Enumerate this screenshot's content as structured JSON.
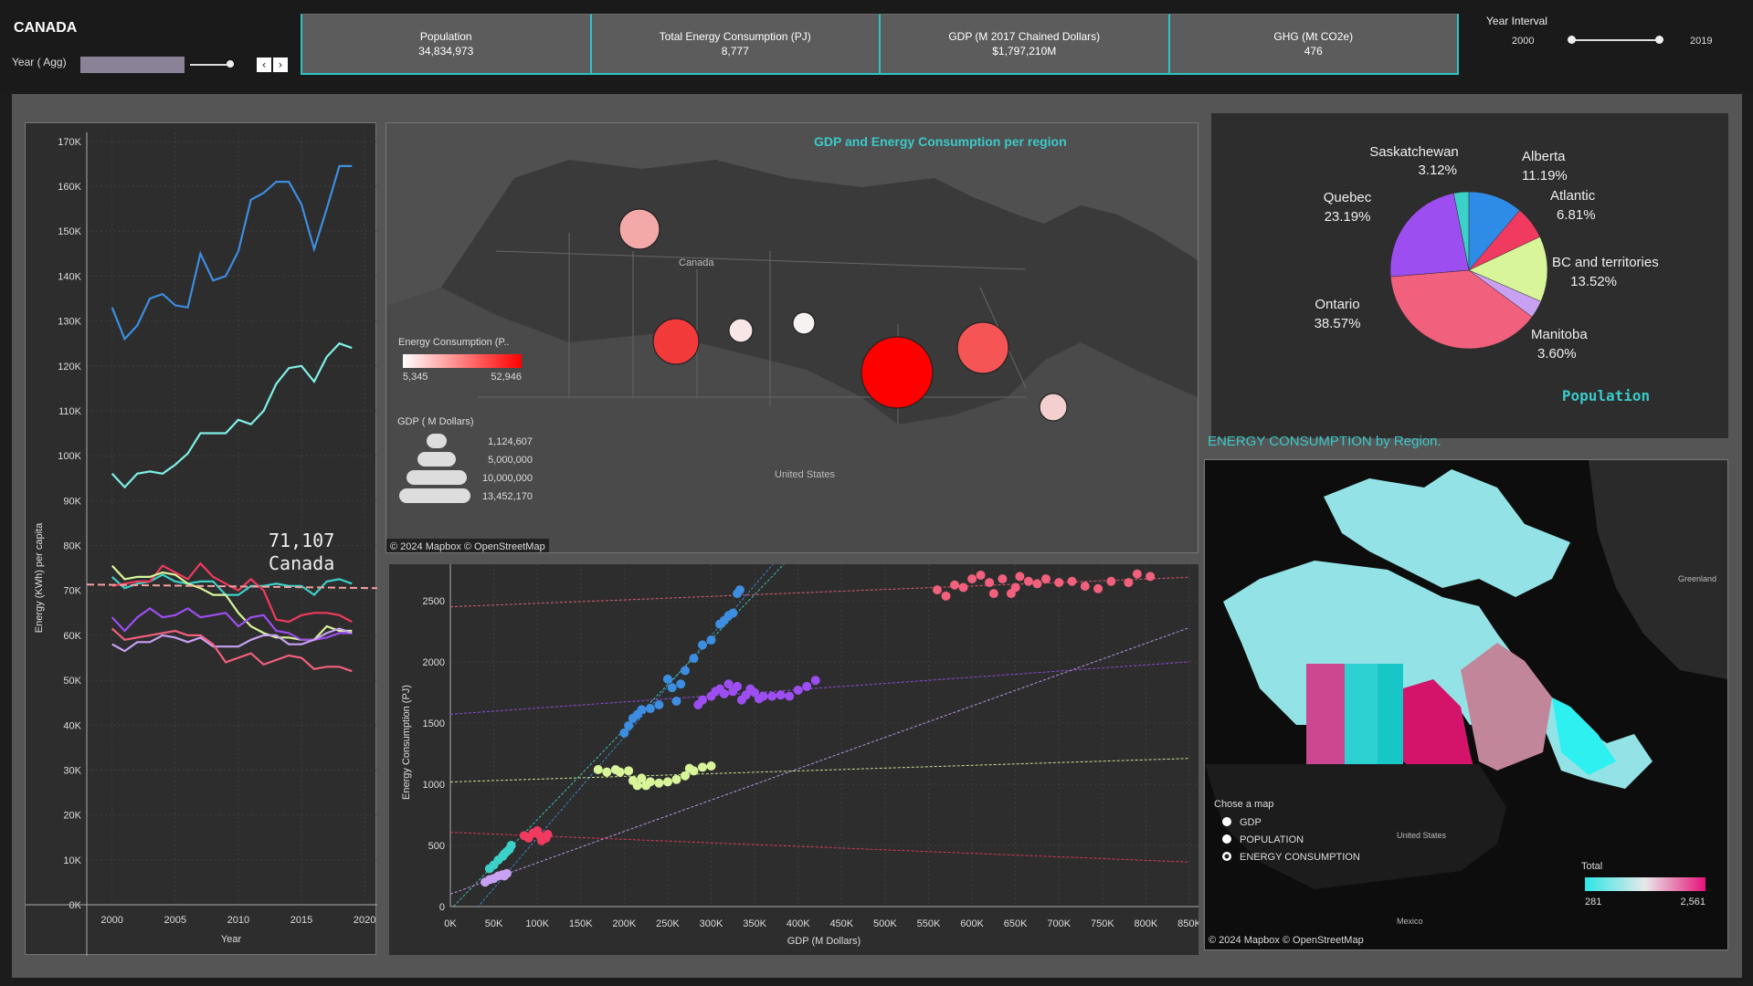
{
  "header": {
    "country": "CANADA",
    "year_label": "Year ( Agg)",
    "prev_icon": "chevron-left-icon",
    "next_icon": "chevron-right-icon",
    "kpis": [
      {
        "label": "Population",
        "value": "34,834,973"
      },
      {
        "label": "Total Energy Consumption (PJ)",
        "value": "8,777"
      },
      {
        "label": "GDP (M 2017 Chained Dollars)",
        "value": "$1,797,210M"
      },
      {
        "label": "GHG (Mt CO2e)",
        "value": "476"
      }
    ],
    "interval_label": "Year Interval",
    "interval_start": "2000",
    "interval_end": "2019"
  },
  "line_chart": {
    "ylabel": "Energy (KWh) per capita",
    "xlabel": "Year",
    "annotation_value": "71,107",
    "annotation_label": "Canada",
    "yticks": [
      "170K",
      "160K",
      "150K",
      "140K",
      "130K",
      "120K",
      "110K",
      "100K",
      "90K",
      "80K",
      "70K",
      "60K",
      "50K",
      "40K",
      "30K",
      "20K",
      "10K",
      "0K"
    ],
    "xticks": [
      "2000",
      "2005",
      "2010",
      "2015",
      "2020"
    ]
  },
  "bubble_map": {
    "title": "GDP and Energy Consumption per region",
    "place_canada": "Canada",
    "place_us": "United States",
    "legend_energy_title": "Energy Consumption (P..",
    "legend_energy_min": "5,345",
    "legend_energy_max": "52,946",
    "legend_gdp_title": "GDP ( M Dollars)",
    "legend_gdp_values": [
      "1,124,607",
      "5,000,000",
      "10,000,000",
      "13,452,170"
    ],
    "attribution": "© 2024 Mapbox © OpenStreetMap"
  },
  "scatter": {
    "ylabel": "Energy Consumption (PJ)",
    "xlabel": "GDP (M Dollars)",
    "xticks": [
      "0K",
      "50K",
      "100K",
      "150K",
      "200K",
      "250K",
      "300K",
      "350K",
      "400K",
      "450K",
      "500K",
      "550K",
      "600K",
      "650K",
      "700K",
      "750K",
      "800K",
      "850K"
    ],
    "yticks": [
      "0",
      "500",
      "1000",
      "1500",
      "2000",
      "2500"
    ]
  },
  "pie": {
    "title": "Population",
    "slices": [
      {
        "name": "Alberta",
        "pct": "11.19%",
        "value": 11.19,
        "color": "#2e8ce6"
      },
      {
        "name": "Atlantic",
        "pct": "6.81%",
        "value": 6.81,
        "color": "#f03a5f"
      },
      {
        "name": "BC and territories",
        "pct": "13.52%",
        "value": 13.52,
        "color": "#d8f59a"
      },
      {
        "name": "Manitoba",
        "pct": "3.60%",
        "value": 3.6,
        "color": "#c9a1f3"
      },
      {
        "name": "Ontario",
        "pct": "38.57%",
        "value": 38.57,
        "color": "#f1607d"
      },
      {
        "name": "Quebec",
        "pct": "23.19%",
        "value": 23.19,
        "color": "#9c4ef0"
      },
      {
        "name": "Saskatchewan",
        "pct": "3.12%",
        "value": 3.12,
        "color": "#3cd1c8"
      }
    ]
  },
  "choropleth": {
    "title": "ENERGY CONSUMPTION  by Region.",
    "greenland": "Greenland",
    "united_states": "United States",
    "mexico": "Mexico",
    "chooser_title": "Chose a map",
    "options": [
      {
        "label": "GDP",
        "selected": false
      },
      {
        "label": "POPULATION",
        "selected": false
      },
      {
        "label": "ENERGY CONSUMPTION",
        "selected": true
      }
    ],
    "legend_title": "Total",
    "legend_min": "281",
    "legend_max": "2,561",
    "attribution": "© 2024 Mapbox © OpenStreetMap"
  },
  "chart_data": [
    {
      "type": "line",
      "ylabel": "Energy (KWh) per capita",
      "xlabel": "Year",
      "x": [
        2000,
        2001,
        2002,
        2003,
        2004,
        2005,
        2006,
        2007,
        2008,
        2009,
        2010,
        2011,
        2012,
        2013,
        2014,
        2015,
        2016,
        2017,
        2018,
        2019
      ],
      "ylim": [
        0,
        172000
      ],
      "xlim": [
        1998,
        2021
      ],
      "reference_value": 71107,
      "series": [
        {
          "color": "#3d8ee0",
          "values": [
            133000,
            126000,
            129000,
            135000,
            136000,
            133500,
            133000,
            145000,
            139000,
            140000,
            145500,
            157000,
            158500,
            161000,
            161000,
            156000,
            146000,
            155000,
            164500,
            164500
          ]
        },
        {
          "color": "#7ff0e6",
          "values": [
            96000,
            93000,
            96000,
            96500,
            96000,
            98000,
            100500,
            105000,
            105000,
            105000,
            108000,
            107000,
            110000,
            116000,
            119500,
            120000,
            116500,
            122000,
            125000,
            124000
          ]
        },
        {
          "color": "#3cd1c8",
          "values": [
            73000,
            70500,
            71500,
            72000,
            73500,
            72000,
            71500,
            72000,
            72000,
            69000,
            69000,
            71000,
            71000,
            71500,
            71000,
            71000,
            69000,
            72000,
            72500,
            71500
          ]
        },
        {
          "color": "#f03a5f",
          "values": [
            71000,
            71500,
            72000,
            72000,
            75500,
            74000,
            72500,
            76000,
            73000,
            71500,
            70000,
            72500,
            70000,
            63500,
            63000,
            64500,
            65000,
            65000,
            64500,
            63000
          ]
        },
        {
          "color": "#d8f59a",
          "values": [
            75500,
            72500,
            73000,
            73000,
            74000,
            73500,
            71500,
            70500,
            69000,
            69000,
            65000,
            62000,
            60500,
            59500,
            59500,
            59000,
            59000,
            62000,
            61000,
            61000
          ]
        },
        {
          "color": "#9c4ef0",
          "values": [
            64000,
            61000,
            64000,
            66000,
            64000,
            64500,
            66000,
            64000,
            64500,
            65000,
            62000,
            64000,
            64500,
            61000,
            60500,
            59000,
            59000,
            59500,
            60500,
            60500
          ]
        },
        {
          "color": "#c9a1f3",
          "values": [
            58000,
            56500,
            58500,
            58500,
            60000,
            59500,
            58500,
            59500,
            57500,
            57500,
            57500,
            59000,
            60000,
            60000,
            58000,
            58000,
            59000,
            60500,
            61500,
            60500
          ]
        },
        {
          "color": "#f1607d",
          "values": [
            61500,
            59000,
            59500,
            60000,
            60500,
            61000,
            60000,
            60000,
            58000,
            54000,
            55000,
            56000,
            53500,
            54500,
            55500,
            55000,
            52500,
            53000,
            53000,
            52000
          ]
        }
      ]
    },
    {
      "type": "scatter",
      "xlabel": "GDP (M Dollars)",
      "ylabel": "Energy Consumption (PJ)",
      "xlim": [
        0,
        850000
      ],
      "ylim": [
        0,
        2800
      ],
      "series": [
        {
          "color": "#f1607d",
          "points": [
            [
              560000,
              2590
            ],
            [
              570000,
              2540
            ],
            [
              580000,
              2630
            ],
            [
              590000,
              2610
            ],
            [
              600000,
              2680
            ],
            [
              610000,
              2710
            ],
            [
              620000,
              2650
            ],
            [
              625000,
              2560
            ],
            [
              635000,
              2680
            ],
            [
              645000,
              2560
            ],
            [
              650000,
              2610
            ],
            [
              655000,
              2700
            ],
            [
              665000,
              2660
            ],
            [
              675000,
              2640
            ],
            [
              685000,
              2680
            ],
            [
              700000,
              2650
            ],
            [
              715000,
              2660
            ],
            [
              730000,
              2620
            ],
            [
              745000,
              2600
            ],
            [
              760000,
              2660
            ],
            [
              780000,
              2650
            ],
            [
              790000,
              2720
            ],
            [
              805000,
              2700
            ]
          ]
        },
        {
          "color": "#3d8ee0",
          "points": [
            [
              200000,
              1420
            ],
            [
              205000,
              1480
            ],
            [
              210000,
              1540
            ],
            [
              215000,
              1570
            ],
            [
              220000,
              1610
            ],
            [
              230000,
              1620
            ],
            [
              240000,
              1650
            ],
            [
              250000,
              1860
            ],
            [
              255000,
              1790
            ],
            [
              260000,
              1680
            ],
            [
              265000,
              1820
            ],
            [
              270000,
              1930
            ],
            [
              280000,
              2030
            ],
            [
              290000,
              2140
            ],
            [
              300000,
              2180
            ],
            [
              310000,
              2310
            ],
            [
              315000,
              2340
            ],
            [
              320000,
              2380
            ],
            [
              325000,
              2400
            ],
            [
              330000,
              2560
            ],
            [
              333000,
              2590
            ]
          ]
        },
        {
          "color": "#9c4ef0",
          "points": [
            [
              285000,
              1650
            ],
            [
              290000,
              1690
            ],
            [
              300000,
              1720
            ],
            [
              305000,
              1760
            ],
            [
              310000,
              1780
            ],
            [
              315000,
              1740
            ],
            [
              320000,
              1820
            ],
            [
              325000,
              1760
            ],
            [
              330000,
              1800
            ],
            [
              335000,
              1690
            ],
            [
              340000,
              1730
            ],
            [
              345000,
              1780
            ],
            [
              350000,
              1750
            ],
            [
              355000,
              1700
            ],
            [
              360000,
              1720
            ],
            [
              370000,
              1720
            ],
            [
              380000,
              1730
            ],
            [
              390000,
              1720
            ],
            [
              400000,
              1770
            ],
            [
              410000,
              1800
            ],
            [
              420000,
              1850
            ]
          ]
        },
        {
          "color": "#d8f59a",
          "points": [
            [
              170000,
              1120
            ],
            [
              180000,
              1100
            ],
            [
              190000,
              1120
            ],
            [
              195000,
              1100
            ],
            [
              205000,
              1110
            ],
            [
              210000,
              1030
            ],
            [
              215000,
              990
            ],
            [
              220000,
              1050
            ],
            [
              225000,
              990
            ],
            [
              230000,
              1020
            ],
            [
              240000,
              1010
            ],
            [
              250000,
              1020
            ],
            [
              260000,
              1040
            ],
            [
              270000,
              1070
            ],
            [
              275000,
              1130
            ],
            [
              280000,
              1110
            ],
            [
              290000,
              1140
            ],
            [
              300000,
              1150
            ]
          ]
        },
        {
          "color": "#3cd1c8",
          "points": [
            [
              45000,
              310
            ],
            [
              50000,
              340
            ],
            [
              55000,
              380
            ],
            [
              60000,
              410
            ],
            [
              62000,
              430
            ],
            [
              65000,
              450
            ],
            [
              68000,
              470
            ],
            [
              70000,
              500
            ]
          ]
        },
        {
          "color": "#c9a1f3",
          "points": [
            [
              40000,
              200
            ],
            [
              45000,
              220
            ],
            [
              50000,
              230
            ],
            [
              55000,
              250
            ],
            [
              60000,
              260
            ],
            [
              62000,
              250
            ],
            [
              65000,
              270
            ]
          ]
        },
        {
          "color": "#f03a5f",
          "points": [
            [
              85000,
              580
            ],
            [
              90000,
              560
            ],
            [
              95000,
              600
            ],
            [
              100000,
              620
            ],
            [
              103000,
              580
            ],
            [
              105000,
              540
            ],
            [
              110000,
              560
            ],
            [
              112000,
              590
            ]
          ]
        }
      ]
    },
    {
      "type": "pie",
      "title": "Population",
      "categories": [
        "Alberta",
        "Atlantic",
        "BC and territories",
        "Manitoba",
        "Ontario",
        "Quebec",
        "Saskatchewan"
      ],
      "values": [
        11.19,
        6.81,
        13.52,
        3.6,
        38.57,
        23.19,
        3.12
      ]
    }
  ]
}
